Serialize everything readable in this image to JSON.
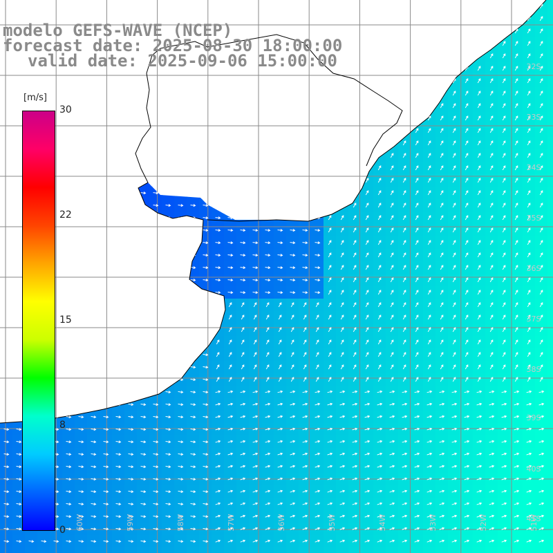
{
  "title": {
    "model": "modelo GEFS-WAVE (NCEP)",
    "forecast_date": "forecast date: 2025-08-30 18:00:00",
    "valid_date": "valid date: 2025-09-06 15:00:00"
  },
  "colorbar": {
    "unit": "[m/s]",
    "min": 0,
    "max": 30,
    "tick_labels": [
      "30",
      "22",
      "15",
      "8",
      "0"
    ],
    "tick_values": [
      30,
      22,
      15,
      8,
      0
    ],
    "colors": [
      "#0000ff",
      "#0066ff",
      "#00ccff",
      "#00ffcc",
      "#00ff00",
      "#ccff00",
      "#ffff00",
      "#ffa500",
      "#ff4400",
      "#ff0000",
      "#ff0066",
      "#cc0088"
    ]
  },
  "map": {
    "lat_labels": [
      "32S",
      "33S",
      "34S",
      "35S",
      "36S",
      "37S",
      "38S",
      "39S",
      "40S",
      "41S"
    ],
    "lon_labels": [
      "61W",
      "60W",
      "59W",
      "58W",
      "57W",
      "56W",
      "55W",
      "54W",
      "53W",
      "52W",
      "51W"
    ],
    "land_color": "#ffffff",
    "coastline_color": "#000000",
    "grid_color": "#8a8a8a",
    "vector_color": "#ffffff"
  }
}
